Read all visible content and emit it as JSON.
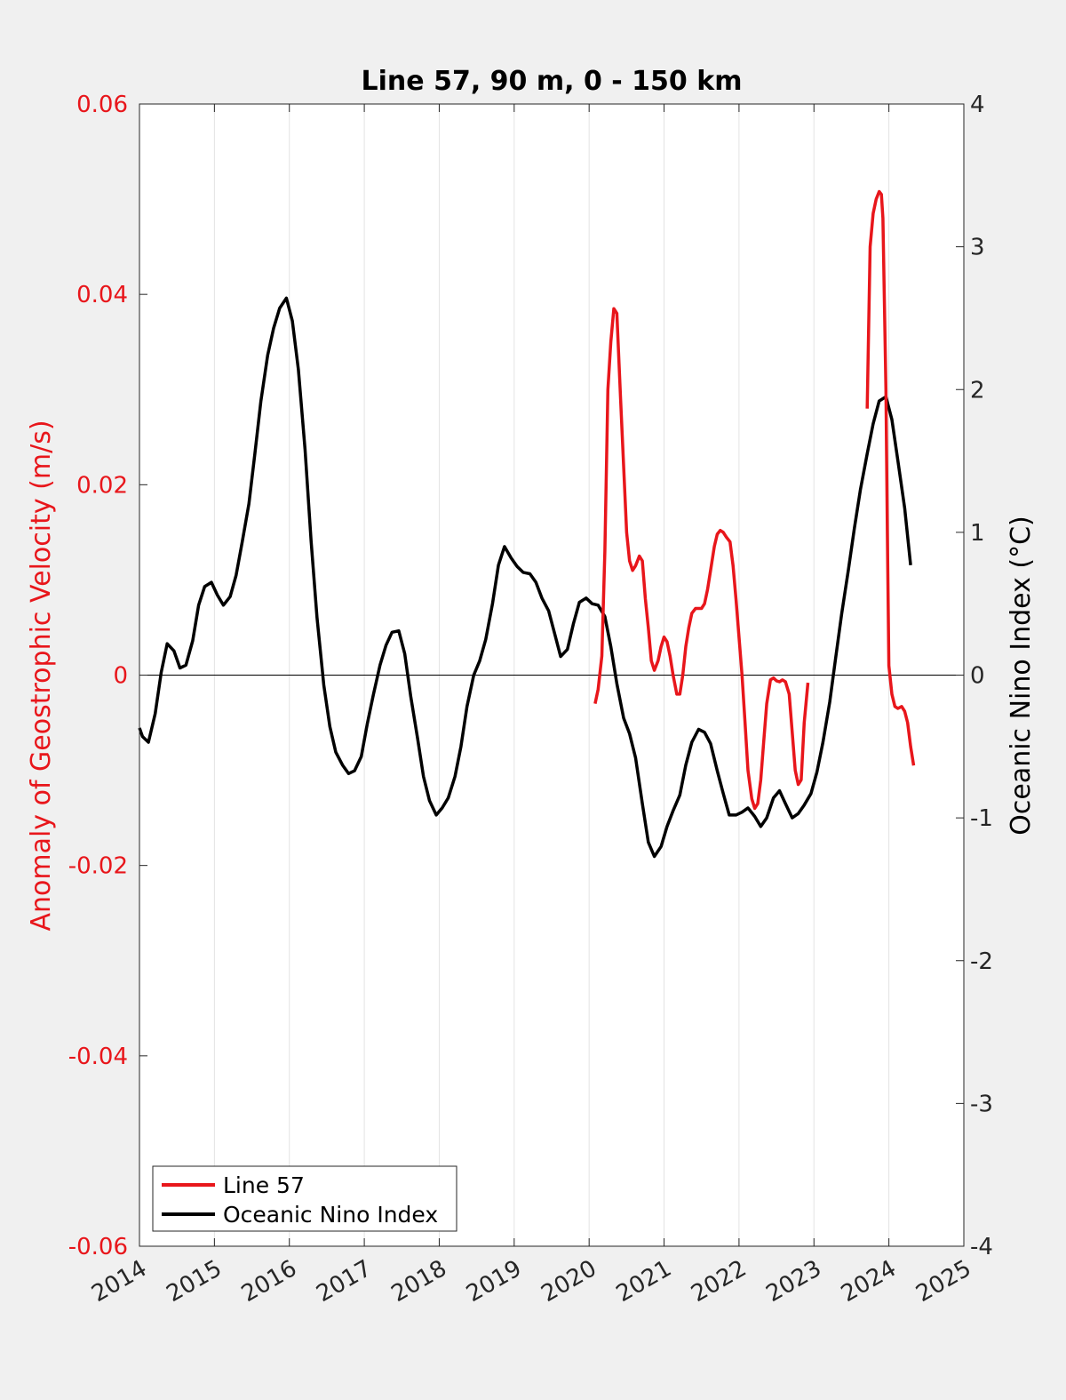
{
  "chart_data": {
    "type": "line",
    "title": "Line 57, 90 m, 0 - 150 km",
    "xlabel": "",
    "ylabel_left": "Anomaly of Geostrophic Velocity (m/s)",
    "ylabel_right": "Oceanic Nino Index (°C)",
    "xlim": [
      2014,
      2025
    ],
    "ylim_left": [
      -0.06,
      0.06
    ],
    "ylim_right": [
      -4,
      4
    ],
    "x_ticks": [
      "2014",
      "2015",
      "2016",
      "2017",
      "2018",
      "2019",
      "2020",
      "2021",
      "2022",
      "2023",
      "2024",
      "2025"
    ],
    "y_left_ticks": [
      "-0.06",
      "-0.04",
      "-0.02",
      "0",
      "0.02",
      "0.04",
      "0.06"
    ],
    "y_right_ticks": [
      "-4",
      "-3",
      "-2",
      "-1",
      "0",
      "1",
      "2",
      "3",
      "4"
    ],
    "grid": "vertical x gridlines",
    "zero_line": true,
    "legend_position": "bottom-left",
    "series": [
      {
        "name": "Line 57",
        "axis": "left",
        "color": "#e8161b",
        "segments": [
          [
            [
              2020.08,
              -0.003
            ],
            [
              2020.12,
              -0.0015
            ],
            [
              2020.17,
              0.002
            ],
            [
              2020.21,
              0.013
            ],
            [
              2020.25,
              0.03
            ],
            [
              2020.29,
              0.035
            ],
            [
              2020.33,
              0.0385
            ],
            [
              2020.37,
              0.038
            ],
            [
              2020.42,
              0.029
            ],
            [
              2020.46,
              0.022
            ],
            [
              2020.5,
              0.015
            ],
            [
              2020.54,
              0.012
            ],
            [
              2020.58,
              0.011
            ],
            [
              2020.62,
              0.0115
            ],
            [
              2020.67,
              0.0125
            ],
            [
              2020.71,
              0.012
            ],
            [
              2020.75,
              0.008
            ],
            [
              2020.79,
              0.005
            ],
            [
              2020.83,
              0.0015
            ],
            [
              2020.87,
              0.0005
            ],
            [
              2020.92,
              0.0015
            ],
            [
              2020.96,
              0.003
            ],
            [
              2021.0,
              0.004
            ],
            [
              2021.04,
              0.0035
            ],
            [
              2021.08,
              0.002
            ],
            [
              2021.12,
              0.0
            ],
            [
              2021.17,
              -0.002
            ],
            [
              2021.21,
              -0.002
            ],
            [
              2021.25,
              0.0
            ],
            [
              2021.29,
              0.003
            ],
            [
              2021.33,
              0.005
            ],
            [
              2021.37,
              0.0065
            ],
            [
              2021.42,
              0.007
            ],
            [
              2021.5,
              0.007
            ],
            [
              2021.54,
              0.0075
            ],
            [
              2021.58,
              0.009
            ],
            [
              2021.62,
              0.011
            ],
            [
              2021.67,
              0.0135
            ],
            [
              2021.71,
              0.0148
            ],
            [
              2021.75,
              0.0152
            ],
            [
              2021.79,
              0.015
            ],
            [
              2021.83,
              0.0145
            ],
            [
              2021.88,
              0.014
            ],
            [
              2021.92,
              0.0115
            ],
            [
              2021.96,
              0.008
            ],
            [
              2022.0,
              0.004
            ],
            [
              2022.04,
              0.0
            ],
            [
              2022.08,
              -0.005
            ],
            [
              2022.12,
              -0.01
            ],
            [
              2022.17,
              -0.013
            ],
            [
              2022.21,
              -0.014
            ],
            [
              2022.25,
              -0.0135
            ],
            [
              2022.29,
              -0.011
            ],
            [
              2022.33,
              -0.007
            ],
            [
              2022.37,
              -0.003
            ],
            [
              2022.42,
              -0.0005
            ],
            [
              2022.46,
              -0.0003
            ],
            [
              2022.5,
              -0.0006
            ],
            [
              2022.54,
              -0.0007
            ],
            [
              2022.58,
              -0.0005
            ],
            [
              2022.62,
              -0.0007
            ],
            [
              2022.67,
              -0.002
            ],
            [
              2022.71,
              -0.006
            ],
            [
              2022.75,
              -0.01
            ],
            [
              2022.79,
              -0.0115
            ],
            [
              2022.83,
              -0.011
            ],
            [
              2022.87,
              -0.005
            ],
            [
              2022.92,
              -0.0008
            ]
          ],
          [
            [
              2023.71,
              0.028
            ],
            [
              2023.75,
              0.045
            ],
            [
              2023.79,
              0.0485
            ],
            [
              2023.83,
              0.05
            ],
            [
              2023.87,
              0.0508
            ],
            [
              2023.9,
              0.0505
            ],
            [
              2023.92,
              0.048
            ],
            [
              2023.96,
              0.03
            ],
            [
              2023.98,
              0.015
            ],
            [
              2024.0,
              0.001
            ],
            [
              2024.04,
              -0.002
            ],
            [
              2024.08,
              -0.0033
            ],
            [
              2024.12,
              -0.0035
            ],
            [
              2024.17,
              -0.0033
            ],
            [
              2024.21,
              -0.0038
            ],
            [
              2024.25,
              -0.005
            ],
            [
              2024.29,
              -0.0075
            ],
            [
              2024.33,
              -0.0095
            ]
          ]
        ]
      },
      {
        "name": "Oceanic Nino Index",
        "axis": "right",
        "color": "#000000",
        "points": [
          [
            2014.0,
            -0.37
          ],
          [
            2014.04,
            -0.43
          ],
          [
            2014.12,
            -0.47
          ],
          [
            2014.21,
            -0.27
          ],
          [
            2014.29,
            0.02
          ],
          [
            2014.37,
            0.22
          ],
          [
            2014.46,
            0.17
          ],
          [
            2014.54,
            0.05
          ],
          [
            2014.62,
            0.07
          ],
          [
            2014.71,
            0.24
          ],
          [
            2014.79,
            0.49
          ],
          [
            2014.87,
            0.62
          ],
          [
            2014.96,
            0.65
          ],
          [
            2015.04,
            0.56
          ],
          [
            2015.12,
            0.49
          ],
          [
            2015.21,
            0.55
          ],
          [
            2015.29,
            0.7
          ],
          [
            2015.37,
            0.93
          ],
          [
            2015.46,
            1.2
          ],
          [
            2015.54,
            1.55
          ],
          [
            2015.62,
            1.92
          ],
          [
            2015.71,
            2.24
          ],
          [
            2015.79,
            2.43
          ],
          [
            2015.87,
            2.57
          ],
          [
            2015.96,
            2.64
          ],
          [
            2016.04,
            2.48
          ],
          [
            2016.12,
            2.14
          ],
          [
            2016.21,
            1.58
          ],
          [
            2016.29,
            0.94
          ],
          [
            2016.37,
            0.4
          ],
          [
            2016.46,
            -0.07
          ],
          [
            2016.54,
            -0.36
          ],
          [
            2016.62,
            -0.54
          ],
          [
            2016.71,
            -0.63
          ],
          [
            2016.79,
            -0.69
          ],
          [
            2016.87,
            -0.67
          ],
          [
            2016.96,
            -0.57
          ],
          [
            2017.04,
            -0.34
          ],
          [
            2017.12,
            -0.14
          ],
          [
            2017.21,
            0.07
          ],
          [
            2017.29,
            0.21
          ],
          [
            2017.37,
            0.3
          ],
          [
            2017.46,
            0.31
          ],
          [
            2017.54,
            0.15
          ],
          [
            2017.62,
            -0.15
          ],
          [
            2017.71,
            -0.44
          ],
          [
            2017.79,
            -0.71
          ],
          [
            2017.87,
            -0.88
          ],
          [
            2017.96,
            -0.98
          ],
          [
            2018.04,
            -0.93
          ],
          [
            2018.12,
            -0.86
          ],
          [
            2018.21,
            -0.71
          ],
          [
            2018.29,
            -0.5
          ],
          [
            2018.37,
            -0.22
          ],
          [
            2018.46,
            0.0
          ],
          [
            2018.54,
            0.1
          ],
          [
            2018.62,
            0.25
          ],
          [
            2018.71,
            0.5
          ],
          [
            2018.79,
            0.77
          ],
          [
            2018.87,
            0.9
          ],
          [
            2018.96,
            0.82
          ],
          [
            2019.04,
            0.76
          ],
          [
            2019.12,
            0.72
          ],
          [
            2019.21,
            0.71
          ],
          [
            2019.29,
            0.65
          ],
          [
            2019.37,
            0.54
          ],
          [
            2019.46,
            0.45
          ],
          [
            2019.54,
            0.29
          ],
          [
            2019.62,
            0.13
          ],
          [
            2019.71,
            0.18
          ],
          [
            2019.79,
            0.36
          ],
          [
            2019.87,
            0.51
          ],
          [
            2019.96,
            0.54
          ],
          [
            2020.04,
            0.5
          ],
          [
            2020.12,
            0.49
          ],
          [
            2020.21,
            0.41
          ],
          [
            2020.29,
            0.2
          ],
          [
            2020.37,
            -0.06
          ],
          [
            2020.46,
            -0.3
          ],
          [
            2020.54,
            -0.41
          ],
          [
            2020.62,
            -0.58
          ],
          [
            2020.71,
            -0.9
          ],
          [
            2020.79,
            -1.17
          ],
          [
            2020.87,
            -1.27
          ],
          [
            2020.96,
            -1.2
          ],
          [
            2021.04,
            -1.06
          ],
          [
            2021.12,
            -0.95
          ],
          [
            2021.21,
            -0.84
          ],
          [
            2021.29,
            -0.63
          ],
          [
            2021.37,
            -0.47
          ],
          [
            2021.46,
            -0.38
          ],
          [
            2021.54,
            -0.4
          ],
          [
            2021.62,
            -0.48
          ],
          [
            2021.71,
            -0.67
          ],
          [
            2021.79,
            -0.83
          ],
          [
            2021.87,
            -0.98
          ],
          [
            2021.96,
            -0.98
          ],
          [
            2022.04,
            -0.96
          ],
          [
            2022.12,
            -0.93
          ],
          [
            2022.21,
            -0.99
          ],
          [
            2022.29,
            -1.06
          ],
          [
            2022.37,
            -1.0
          ],
          [
            2022.46,
            -0.86
          ],
          [
            2022.54,
            -0.81
          ],
          [
            2022.62,
            -0.9
          ],
          [
            2022.71,
            -1.0
          ],
          [
            2022.79,
            -0.97
          ],
          [
            2022.87,
            -0.91
          ],
          [
            2022.96,
            -0.83
          ],
          [
            2023.04,
            -0.68
          ],
          [
            2023.12,
            -0.47
          ],
          [
            2023.21,
            -0.19
          ],
          [
            2023.29,
            0.12
          ],
          [
            2023.37,
            0.43
          ],
          [
            2023.46,
            0.74
          ],
          [
            2023.54,
            1.03
          ],
          [
            2023.62,
            1.3
          ],
          [
            2023.71,
            1.55
          ],
          [
            2023.79,
            1.76
          ],
          [
            2023.87,
            1.92
          ],
          [
            2023.96,
            1.95
          ],
          [
            2024.04,
            1.79
          ],
          [
            2024.12,
            1.5
          ],
          [
            2024.21,
            1.17
          ],
          [
            2024.29,
            0.77
          ]
        ]
      }
    ]
  }
}
